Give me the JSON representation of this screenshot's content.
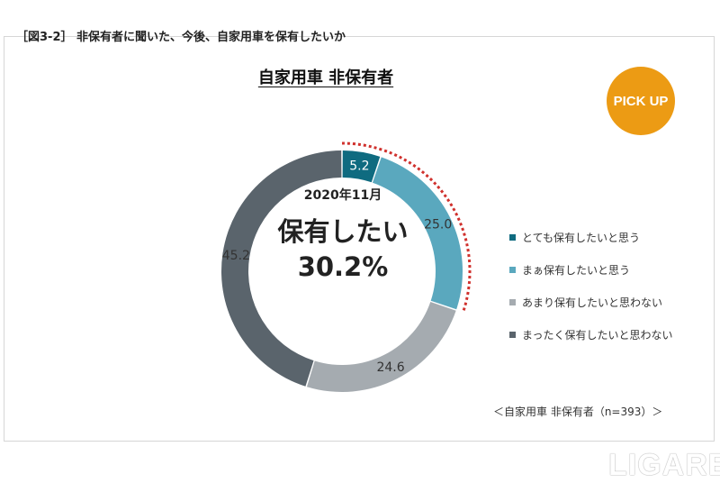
{
  "figure_title": "［図3-2］ 非保有者に聞いた、今後、自家用車を保有したいか",
  "chart_title": "自家用車 非保有者",
  "badge": "PICK UP",
  "center": {
    "date": "2020年11月",
    "label": "保有したい",
    "value": "30.2%"
  },
  "note": "＜自家用車 非保有者（n=393）＞",
  "logo": "LIGARE",
  "highlight_color": "#d0312d",
  "chart_data": {
    "type": "pie",
    "variant": "donut",
    "total": 100,
    "series": [
      {
        "name": "とても保有したいと思う",
        "value": 5.2,
        "label": "5.2",
        "color": "#0f6b80",
        "label_color": "#ffffff"
      },
      {
        "name": "まぁ保有したいと思う",
        "value": 25.0,
        "label": "25.0",
        "color": "#5aa8be",
        "label_color": "#333333"
      },
      {
        "name": "あまり保有したいと思わない",
        "value": 24.6,
        "label": "24.6",
        "color": "#a5abb0",
        "label_color": "#333333"
      },
      {
        "name": "まったく保有したいと思わない",
        "value": 45.2,
        "label": "45.2",
        "color": "#5a646c",
        "label_color": "#333333"
      }
    ],
    "highlighted_sum": 30.2,
    "legend_position": "right"
  }
}
